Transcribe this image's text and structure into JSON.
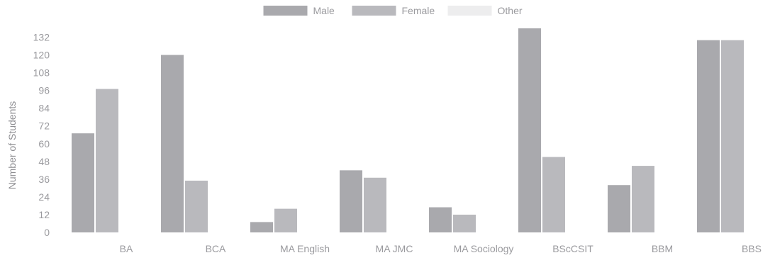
{
  "chart_data": {
    "type": "bar",
    "title": "",
    "xlabel": "",
    "ylabel": "Number of Students",
    "categories": [
      "BA",
      "BCA",
      "MA English",
      "MA JMC",
      "MA Sociology",
      "BScCSIT",
      "BBM",
      "BBS"
    ],
    "series": [
      {
        "name": "Male",
        "values": [
          67,
          120,
          7,
          42,
          17,
          138,
          32,
          130
        ],
        "color": "#a9a9ad"
      },
      {
        "name": "Female",
        "values": [
          97,
          35,
          16,
          37,
          12,
          51,
          45,
          130
        ],
        "color": "#b9b9bd"
      },
      {
        "name": "Other",
        "values": [
          0,
          0,
          0,
          0,
          0,
          0,
          0,
          0
        ],
        "color": "#ededee"
      }
    ],
    "ylim": [
      0,
      138
    ],
    "yticks": [
      0,
      12,
      24,
      36,
      48,
      60,
      72,
      84,
      96,
      108,
      120,
      132
    ],
    "grid": false,
    "legend_position": "top"
  },
  "colors": {
    "tick_text": "#9a9a9e",
    "axis_label": "#8d8d91"
  }
}
